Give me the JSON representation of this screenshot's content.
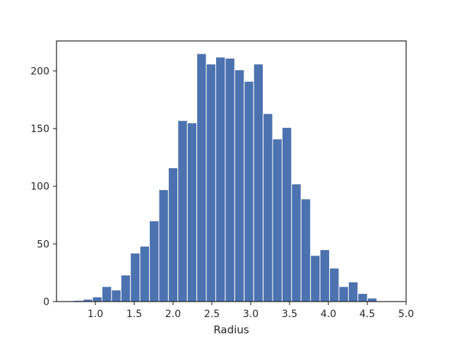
{
  "chart_data": {
    "type": "bar",
    "title": "",
    "xlabel": "Radius",
    "ylabel": "",
    "xlim": [
      0.5,
      5.0
    ],
    "ylim": [
      0,
      226
    ],
    "grid": false,
    "bar_color": "#4c72b0",
    "bin_width": 0.122,
    "x_ticks": [
      1.0,
      1.5,
      2.0,
      2.5,
      3.0,
      3.5,
      4.0,
      4.5,
      5.0
    ],
    "x_tick_labels": [
      "1.0",
      "1.5",
      "2.0",
      "2.5",
      "3.0",
      "3.5",
      "4.0",
      "4.5",
      "5.0"
    ],
    "y_ticks": [
      0,
      50,
      100,
      150,
      200
    ],
    "y_tick_labels": [
      "0",
      "50",
      "100",
      "150",
      "200"
    ],
    "bins_left": [
      0.72,
      0.842,
      0.964,
      1.086,
      1.208,
      1.33,
      1.452,
      1.574,
      1.696,
      1.818,
      1.94,
      2.062,
      2.184,
      2.306,
      2.428,
      2.55,
      2.672,
      2.794,
      2.916,
      3.038,
      3.16,
      3.282,
      3.404,
      3.526,
      3.648,
      3.77,
      3.892,
      4.014,
      4.136,
      4.258,
      4.38,
      4.502
    ],
    "values": [
      1,
      2,
      4,
      13,
      10,
      23,
      42,
      48,
      70,
      97,
      116,
      157,
      155,
      215,
      206,
      212,
      211,
      201,
      191,
      206,
      163,
      141,
      151,
      102,
      89,
      40,
      45,
      29,
      13,
      17,
      7,
      3
    ]
  }
}
